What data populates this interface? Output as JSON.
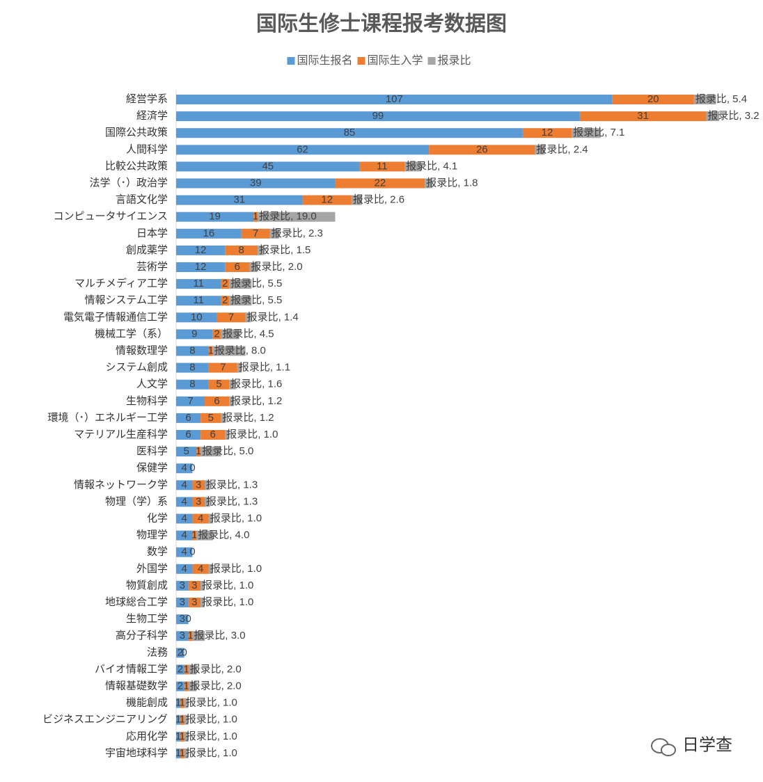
{
  "chart_data": {
    "type": "stacked-barh",
    "title": "国际生修士课程报考数据图",
    "categories": [
      "経営学系",
      "経済学",
      "国際公共政策",
      "人間科学",
      "比較公共政策",
      "法学（･）政治学",
      "言語文化学",
      "コンピュータサイエンス",
      "日本学",
      "創成薬学",
      "芸術学",
      "マルチメディア工学",
      "情報システム工学",
      "電気電子情報通信工学",
      "機械工学（系）",
      "情報数理学",
      "システム創成",
      "人文学",
      "生物科学",
      "環境（･）エネルギー工学",
      "マテリアル生産科学",
      "医科学",
      "保健学",
      "情報ネットワーク学",
      "物理（学）系",
      "化学",
      "物理学",
      "数学",
      "外国学",
      "物質創成",
      "地球総合工学",
      "生物工学",
      "高分子科学",
      "法務",
      "バイオ情報工学",
      "情報基礎数学",
      "機能創成",
      "ビジネスエンジニアリング",
      "応用化学",
      "宇宙地球科学"
    ],
    "series": [
      {
        "name": "国际生报名",
        "color": "#5b9bd5",
        "values": [
          107,
          99,
          85,
          62,
          45,
          39,
          31,
          19,
          16,
          12,
          12,
          11,
          11,
          10,
          9,
          8,
          8,
          8,
          7,
          6,
          6,
          5,
          4,
          4,
          4,
          4,
          4,
          4,
          4,
          3,
          3,
          3,
          3,
          2,
          2,
          2,
          1,
          1,
          1,
          1
        ]
      },
      {
        "name": "国际生入学",
        "color": "#ed7d31",
        "values": [
          20,
          31,
          12,
          26,
          11,
          22,
          12,
          1,
          7,
          8,
          6,
          2,
          2,
          7,
          2,
          1,
          7,
          5,
          6,
          5,
          6,
          1,
          0,
          3,
          3,
          4,
          1,
          0,
          4,
          3,
          3,
          0,
          1,
          0,
          1,
          1,
          1,
          1,
          1,
          1
        ]
      },
      {
        "name": "报录比",
        "color": "#a5a5a5",
        "values": [
          5.4,
          3.2,
          7.1,
          2.4,
          4.1,
          1.8,
          2.6,
          19.0,
          2.3,
          1.5,
          2.0,
          5.5,
          5.5,
          1.4,
          4.5,
          8.0,
          1.1,
          1.6,
          1.2,
          1.2,
          1.0,
          5.0,
          null,
          1.3,
          1.3,
          1.0,
          4.0,
          null,
          1.0,
          1.0,
          1.0,
          null,
          3.0,
          null,
          2.0,
          2.0,
          1.0,
          1.0,
          1.0,
          1.0
        ],
        "value_labels": [
          "报录比, 5.4",
          "报录比, 3.2",
          "报录比, 7.1",
          "报录比, 2.4",
          "报录比, 4.1",
          "报录比, 1.8",
          "报录比, 2.6",
          "报录比, 19.0",
          "报录比, 2.3",
          "报录比, 1.5",
          "报录比, 2.0",
          "报录比, 5.5",
          "报录比, 5.5",
          "报录比, 1.4",
          "报录比, 4.5",
          "报录比, 8.0",
          "报录比, 1.1",
          "报录比, 1.6",
          "报录比, 1.2",
          "报录比, 1.2",
          "报录比, 1.0",
          "报录比, 5.0",
          null,
          "报录比, 1.3",
          "报录比, 1.3",
          "报录比, 1.0",
          "报录比, 4.0",
          null,
          "报录比, 1.0",
          "报录比, 1.0",
          "报录比, 1.0",
          null,
          "报录比, 3.0",
          null,
          "报录比, 2.0",
          "报录比, 2.0",
          "报录比, 1.0",
          "报录比, 1.0",
          "报录比, 1.0",
          "报录比, 1.0"
        ]
      }
    ],
    "xlim": [
      0,
      140
    ]
  },
  "watermark": "日学查"
}
